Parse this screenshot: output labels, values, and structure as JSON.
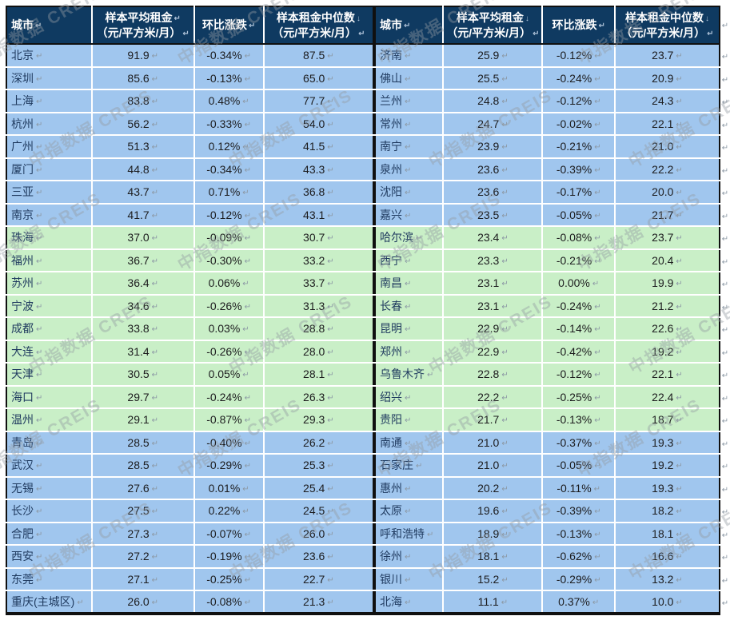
{
  "colors": {
    "header_bg": "#0F3A61",
    "row_blue": "#A0C6EE",
    "row_green": "#C9EFC7",
    "grid_line": "#FFFFFF",
    "frame_border": "#101010",
    "city_text": "#1F3A5F",
    "value_text": "#1C1C1E",
    "mark_grey": "#8C98A4",
    "header_mark_grey": "#AFC3D9"
  },
  "marks": {
    "cell_end": "↵",
    "line_break": "↓"
  },
  "watermark": {
    "text": "中指数据 CREIS"
  },
  "tables": [
    {
      "id": "left",
      "header_keys": [
        "city",
        "avg-rent",
        "mom-change",
        "median-rent"
      ],
      "headers": [
        {
          "lines": [
            {
              "text": "城市",
              "mark": "↵"
            }
          ]
        },
        {
          "lines": [
            {
              "text": "样本平均租金",
              "mark": "↵"
            },
            {
              "text": "（元/平方米/月）",
              "mark": "↵"
            }
          ]
        },
        {
          "lines": [
            {
              "text": "环比涨跌",
              "mark": "↵"
            }
          ]
        },
        {
          "lines": [
            {
              "text": "样本租金中位数",
              "mark": "↓"
            },
            {
              "text": "（元/平方米/月）",
              "mark": "↵"
            }
          ]
        }
      ],
      "bands": [
        {
          "color": "blue",
          "count": 8
        },
        {
          "color": "green",
          "count": 9
        },
        {
          "color": "blue",
          "count": 8
        }
      ],
      "rows": [
        [
          "北京",
          "91.9",
          "-0.34%",
          "87.5"
        ],
        [
          "深圳",
          "85.6",
          "-0.13%",
          "65.0"
        ],
        [
          "上海",
          "83.8",
          "0.48%",
          "77.7"
        ],
        [
          "杭州",
          "56.2",
          "-0.33%",
          "54.0"
        ],
        [
          "广州",
          "51.3",
          "0.12%",
          "41.5"
        ],
        [
          "厦门",
          "44.8",
          "-0.34%",
          "43.3"
        ],
        [
          "三亚",
          "43.7",
          "0.71%",
          "36.8"
        ],
        [
          "南京",
          "41.7",
          "-0.12%",
          "43.1"
        ],
        [
          "珠海",
          "37.0",
          "-0.09%",
          "30.7"
        ],
        [
          "福州",
          "36.7",
          "-0.30%",
          "33.2"
        ],
        [
          "苏州",
          "36.4",
          "0.06%",
          "33.7"
        ],
        [
          "宁波",
          "34.6",
          "-0.26%",
          "31.3"
        ],
        [
          "成都",
          "33.8",
          "0.03%",
          "28.8"
        ],
        [
          "大连",
          "31.4",
          "-0.26%",
          "28.0"
        ],
        [
          "天津",
          "30.5",
          "0.05%",
          "28.1"
        ],
        [
          "海口",
          "29.7",
          "-0.24%",
          "26.3"
        ],
        [
          "温州",
          "29.1",
          "-0.87%",
          "29.3"
        ],
        [
          "青岛",
          "28.5",
          "-0.40%",
          "26.2"
        ],
        [
          "武汉",
          "28.5",
          "-0.29%",
          "25.3"
        ],
        [
          "无锡",
          "27.6",
          "0.01%",
          "25.4"
        ],
        [
          "长沙",
          "27.5",
          "0.22%",
          "24.5"
        ],
        [
          "合肥",
          "27.3",
          "-0.07%",
          "26.0"
        ],
        [
          "西安",
          "27.2",
          "-0.19%",
          "23.6"
        ],
        [
          "东莞",
          "27.1",
          "-0.25%",
          "22.7"
        ],
        [
          "重庆(主城区)",
          "26.0",
          "-0.08%",
          "21.3"
        ]
      ]
    },
    {
      "id": "right",
      "header_keys": [
        "city",
        "avg-rent",
        "mom-change",
        "median-rent"
      ],
      "headers": [
        {
          "lines": [
            {
              "text": "城市",
              "mark": "↵"
            }
          ]
        },
        {
          "lines": [
            {
              "text": "样本平均租金",
              "mark": "↓"
            },
            {
              "text": "（元/平方米/月）",
              "mark": "↵"
            }
          ]
        },
        {
          "lines": [
            {
              "text": "环比涨跌",
              "mark": "↵"
            }
          ]
        },
        {
          "lines": [
            {
              "text": "样本租金中位数",
              "mark": "↓"
            },
            {
              "text": "（元/平方米/月）",
              "mark": "↵"
            }
          ]
        }
      ],
      "bands": [
        {
          "color": "blue",
          "count": 8
        },
        {
          "color": "green",
          "count": 9
        },
        {
          "color": "blue",
          "count": 8
        }
      ],
      "rows": [
        [
          "济南",
          "25.9",
          "-0.12%",
          "23.7"
        ],
        [
          "佛山",
          "25.5",
          "-0.24%",
          "20.9"
        ],
        [
          "兰州",
          "24.8",
          "-0.12%",
          "24.3"
        ],
        [
          "常州",
          "24.7",
          "-0.02%",
          "22.1"
        ],
        [
          "南宁",
          "23.9",
          "-0.21%",
          "21.0"
        ],
        [
          "泉州",
          "23.6",
          "-0.39%",
          "22.2"
        ],
        [
          "沈阳",
          "23.6",
          "-0.17%",
          "20.0"
        ],
        [
          "嘉兴",
          "23.5",
          "-0.05%",
          "21.7"
        ],
        [
          "哈尔滨",
          "23.4",
          "-0.08%",
          "23.7"
        ],
        [
          "西宁",
          "23.3",
          "-0.21%",
          "20.4"
        ],
        [
          "南昌",
          "23.1",
          "0.00%",
          "19.9"
        ],
        [
          "长春",
          "23.1",
          "-0.24%",
          "21.2"
        ],
        [
          "昆明",
          "22.9",
          "-0.14%",
          "22.6"
        ],
        [
          "郑州",
          "22.9",
          "-0.42%",
          "19.2"
        ],
        [
          "乌鲁木齐",
          "22.8",
          "-0.12%",
          "22.1"
        ],
        [
          "绍兴",
          "22.2",
          "-0.25%",
          "22.4"
        ],
        [
          "贵阳",
          "21.7",
          "-0.13%",
          "18.7"
        ],
        [
          "南通",
          "21.0",
          "-0.37%",
          "19.3"
        ],
        [
          "石家庄",
          "21.0",
          "-0.05%",
          "19.2"
        ],
        [
          "惠州",
          "20.2",
          "-0.11%",
          "19.3"
        ],
        [
          "太原",
          "19.6",
          "-0.39%",
          "18.2"
        ],
        [
          "呼和浩特",
          "18.9",
          "-0.13%",
          "18.1"
        ],
        [
          "徐州",
          "18.1",
          "-0.62%",
          "16.6"
        ],
        [
          "银川",
          "15.2",
          "-0.29%",
          "13.2"
        ],
        [
          "北海",
          "11.1",
          "0.37%",
          "10.0"
        ]
      ]
    }
  ]
}
